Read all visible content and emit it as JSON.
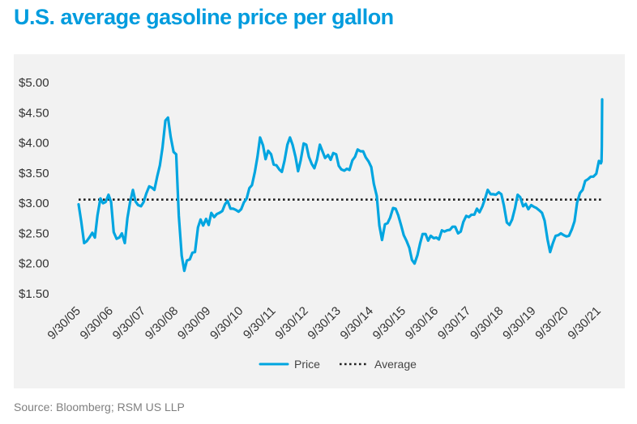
{
  "title": "U.S. average gasoline price per gallon",
  "source": "Source: Bloomberg; RSM US LLP",
  "chart_data": {
    "type": "line",
    "title": "U.S. average gasoline price per gallon",
    "y_tick_labels": [
      "$5.00",
      "$4.50",
      "$4.00",
      "$3.50",
      "$3.00",
      "$2.50",
      "$2.00",
      "$1.50"
    ],
    "y_ticks": [
      5.0,
      4.5,
      4.0,
      3.5,
      3.0,
      2.5,
      2.0,
      1.5
    ],
    "ylim": [
      1.5,
      5.0
    ],
    "x_tick_labels": [
      "9/30/05",
      "9/30/06",
      "9/30/07",
      "9/30/08",
      "9/30/09",
      "9/30/10",
      "9/30/11",
      "9/30/12",
      "9/30/13",
      "9/30/14",
      "9/30/15",
      "9/30/16",
      "9/30/17",
      "9/30/18",
      "9/30/19",
      "9/30/20",
      "9/30/21"
    ],
    "x_ticks": [
      2005.75,
      2006.75,
      2007.75,
      2008.75,
      2009.75,
      2010.75,
      2011.75,
      2012.75,
      2013.75,
      2014.75,
      2015.75,
      2016.75,
      2017.75,
      2018.75,
      2019.75,
      2020.75,
      2021.75
    ],
    "xlim": [
      2005.75,
      2021.85
    ],
    "legend_position": "bottom-center",
    "grid": false,
    "colors": {
      "price": "#00a5e0",
      "average": "#222222"
    },
    "series": [
      {
        "name": "Price",
        "style": "solid",
        "points": [
          [
            2005.75,
            2.98
          ],
          [
            2005.83,
            2.7
          ],
          [
            2005.92,
            2.34
          ],
          [
            2006.0,
            2.37
          ],
          [
            2006.08,
            2.43
          ],
          [
            2006.17,
            2.51
          ],
          [
            2006.25,
            2.43
          ],
          [
            2006.33,
            2.8
          ],
          [
            2006.42,
            3.08
          ],
          [
            2006.5,
            3.0
          ],
          [
            2006.58,
            3.02
          ],
          [
            2006.67,
            3.14
          ],
          [
            2006.75,
            3.02
          ],
          [
            2006.83,
            2.52
          ],
          [
            2006.92,
            2.41
          ],
          [
            2007.0,
            2.43
          ],
          [
            2007.08,
            2.5
          ],
          [
            2007.17,
            2.34
          ],
          [
            2007.25,
            2.75
          ],
          [
            2007.33,
            3.01
          ],
          [
            2007.42,
            3.22
          ],
          [
            2007.5,
            3.03
          ],
          [
            2007.58,
            2.97
          ],
          [
            2007.67,
            2.95
          ],
          [
            2007.75,
            3.02
          ],
          [
            2007.83,
            3.16
          ],
          [
            2007.92,
            3.28
          ],
          [
            2008.0,
            3.26
          ],
          [
            2008.08,
            3.22
          ],
          [
            2008.17,
            3.45
          ],
          [
            2008.25,
            3.63
          ],
          [
            2008.33,
            3.92
          ],
          [
            2008.42,
            4.37
          ],
          [
            2008.5,
            4.42
          ],
          [
            2008.58,
            4.1
          ],
          [
            2008.67,
            3.85
          ],
          [
            2008.75,
            3.81
          ],
          [
            2008.83,
            2.8
          ],
          [
            2008.92,
            2.13
          ],
          [
            2009.0,
            1.88
          ],
          [
            2009.08,
            2.05
          ],
          [
            2009.17,
            2.07
          ],
          [
            2009.25,
            2.18
          ],
          [
            2009.33,
            2.19
          ],
          [
            2009.42,
            2.6
          ],
          [
            2009.5,
            2.73
          ],
          [
            2009.58,
            2.63
          ],
          [
            2009.67,
            2.74
          ],
          [
            2009.75,
            2.64
          ],
          [
            2009.83,
            2.84
          ],
          [
            2009.92,
            2.77
          ],
          [
            2010.0,
            2.82
          ],
          [
            2010.08,
            2.84
          ],
          [
            2010.17,
            2.87
          ],
          [
            2010.25,
            2.98
          ],
          [
            2010.33,
            3.04
          ],
          [
            2010.42,
            2.91
          ],
          [
            2010.5,
            2.91
          ],
          [
            2010.58,
            2.89
          ],
          [
            2010.67,
            2.86
          ],
          [
            2010.75,
            2.9
          ],
          [
            2010.83,
            3.01
          ],
          [
            2010.92,
            3.08
          ],
          [
            2011.0,
            3.25
          ],
          [
            2011.08,
            3.3
          ],
          [
            2011.17,
            3.52
          ],
          [
            2011.25,
            3.77
          ],
          [
            2011.33,
            4.09
          ],
          [
            2011.42,
            3.96
          ],
          [
            2011.5,
            3.73
          ],
          [
            2011.58,
            3.87
          ],
          [
            2011.67,
            3.81
          ],
          [
            2011.75,
            3.64
          ],
          [
            2011.83,
            3.63
          ],
          [
            2011.92,
            3.56
          ],
          [
            2012.0,
            3.52
          ],
          [
            2012.08,
            3.7
          ],
          [
            2012.17,
            3.97
          ],
          [
            2012.25,
            4.09
          ],
          [
            2012.33,
            3.97
          ],
          [
            2012.42,
            3.77
          ],
          [
            2012.5,
            3.53
          ],
          [
            2012.58,
            3.71
          ],
          [
            2012.67,
            3.99
          ],
          [
            2012.75,
            3.97
          ],
          [
            2012.83,
            3.77
          ],
          [
            2012.92,
            3.65
          ],
          [
            2013.0,
            3.58
          ],
          [
            2013.08,
            3.72
          ],
          [
            2013.17,
            3.97
          ],
          [
            2013.25,
            3.86
          ],
          [
            2013.33,
            3.75
          ],
          [
            2013.42,
            3.8
          ],
          [
            2013.5,
            3.72
          ],
          [
            2013.58,
            3.83
          ],
          [
            2013.67,
            3.81
          ],
          [
            2013.75,
            3.62
          ],
          [
            2013.83,
            3.56
          ],
          [
            2013.92,
            3.54
          ],
          [
            2014.0,
            3.57
          ],
          [
            2014.08,
            3.55
          ],
          [
            2014.17,
            3.71
          ],
          [
            2014.25,
            3.77
          ],
          [
            2014.33,
            3.89
          ],
          [
            2014.42,
            3.86
          ],
          [
            2014.5,
            3.86
          ],
          [
            2014.58,
            3.76
          ],
          [
            2014.67,
            3.69
          ],
          [
            2014.75,
            3.6
          ],
          [
            2014.83,
            3.32
          ],
          [
            2014.92,
            3.12
          ],
          [
            2015.0,
            2.63
          ],
          [
            2015.08,
            2.39
          ],
          [
            2015.17,
            2.65
          ],
          [
            2015.25,
            2.67
          ],
          [
            2015.33,
            2.76
          ],
          [
            2015.42,
            2.92
          ],
          [
            2015.5,
            2.91
          ],
          [
            2015.58,
            2.8
          ],
          [
            2015.67,
            2.63
          ],
          [
            2015.75,
            2.47
          ],
          [
            2015.83,
            2.38
          ],
          [
            2015.92,
            2.26
          ],
          [
            2016.0,
            2.06
          ],
          [
            2016.08,
            2.0
          ],
          [
            2016.17,
            2.14
          ],
          [
            2016.25,
            2.33
          ],
          [
            2016.33,
            2.49
          ],
          [
            2016.42,
            2.49
          ],
          [
            2016.5,
            2.38
          ],
          [
            2016.58,
            2.46
          ],
          [
            2016.67,
            2.42
          ],
          [
            2016.75,
            2.43
          ],
          [
            2016.83,
            2.4
          ],
          [
            2016.92,
            2.55
          ],
          [
            2017.0,
            2.53
          ],
          [
            2017.08,
            2.55
          ],
          [
            2017.17,
            2.56
          ],
          [
            2017.25,
            2.61
          ],
          [
            2017.33,
            2.61
          ],
          [
            2017.42,
            2.5
          ],
          [
            2017.5,
            2.53
          ],
          [
            2017.58,
            2.69
          ],
          [
            2017.67,
            2.79
          ],
          [
            2017.75,
            2.77
          ],
          [
            2017.83,
            2.81
          ],
          [
            2017.92,
            2.81
          ],
          [
            2018.0,
            2.91
          ],
          [
            2018.08,
            2.85
          ],
          [
            2018.17,
            2.95
          ],
          [
            2018.25,
            3.08
          ],
          [
            2018.33,
            3.22
          ],
          [
            2018.42,
            3.15
          ],
          [
            2018.5,
            3.15
          ],
          [
            2018.58,
            3.14
          ],
          [
            2018.67,
            3.18
          ],
          [
            2018.75,
            3.15
          ],
          [
            2018.83,
            2.96
          ],
          [
            2018.92,
            2.68
          ],
          [
            2019.0,
            2.64
          ],
          [
            2019.08,
            2.73
          ],
          [
            2019.17,
            2.92
          ],
          [
            2019.25,
            3.14
          ],
          [
            2019.33,
            3.1
          ],
          [
            2019.42,
            2.95
          ],
          [
            2019.5,
            2.99
          ],
          [
            2019.58,
            2.9
          ],
          [
            2019.67,
            2.97
          ],
          [
            2019.75,
            2.94
          ],
          [
            2019.83,
            2.92
          ],
          [
            2019.92,
            2.88
          ],
          [
            2020.0,
            2.84
          ],
          [
            2020.08,
            2.71
          ],
          [
            2020.17,
            2.4
          ],
          [
            2020.25,
            2.19
          ],
          [
            2020.33,
            2.33
          ],
          [
            2020.42,
            2.46
          ],
          [
            2020.5,
            2.47
          ],
          [
            2020.58,
            2.5
          ],
          [
            2020.67,
            2.47
          ],
          [
            2020.75,
            2.45
          ],
          [
            2020.83,
            2.46
          ],
          [
            2020.92,
            2.57
          ],
          [
            2021.0,
            2.7
          ],
          [
            2021.08,
            3.01
          ],
          [
            2021.17,
            3.17
          ],
          [
            2021.25,
            3.22
          ],
          [
            2021.33,
            3.37
          ],
          [
            2021.42,
            3.4
          ],
          [
            2021.5,
            3.44
          ],
          [
            2021.58,
            3.44
          ],
          [
            2021.67,
            3.49
          ],
          [
            2021.75,
            3.7
          ],
          [
            2021.78,
            3.69
          ],
          [
            2021.81,
            3.66
          ],
          [
            2021.83,
            3.69
          ],
          [
            2021.84,
            3.94
          ],
          [
            2021.85,
            4.72
          ]
        ]
      },
      {
        "name": "Average",
        "style": "dotted",
        "value": 3.06
      }
    ]
  }
}
